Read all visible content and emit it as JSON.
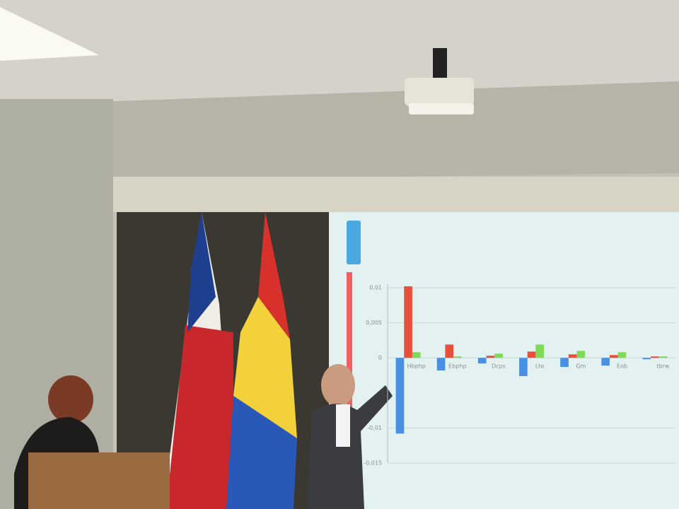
{
  "chart_data": {
    "type": "bar",
    "categories": [
      "Hbphp",
      "Ebphp",
      "Dcps",
      "Lte",
      "Gm",
      "Eob",
      "tbrw"
    ],
    "series": [
      {
        "color": "#4a90e2",
        "values": [
          -0.0108,
          -0.0018,
          -0.0008,
          -0.0026,
          -0.0013,
          -0.0011,
          -0.0002
        ]
      },
      {
        "color": "#e8503c",
        "values": [
          0.0102,
          0.0019,
          0.0003,
          0.0009,
          0.0005,
          0.0004,
          0.0002
        ]
      },
      {
        "color": "#7ed957",
        "values": [
          0.0008,
          0.0002,
          0.0006,
          0.0019,
          0.001,
          0.0008,
          0.0002
        ]
      }
    ],
    "ylim": [
      -0.015,
      0.01
    ],
    "yticks": [
      {
        "value": 0.01,
        "label": "0,01"
      },
      {
        "value": 0.005,
        "label": "0,005"
      },
      0,
      {
        "value": -0.01,
        "label": "-0,01"
      },
      {
        "value": -0.015,
        "label": "-0,015"
      }
    ],
    "grid": true
  }
}
